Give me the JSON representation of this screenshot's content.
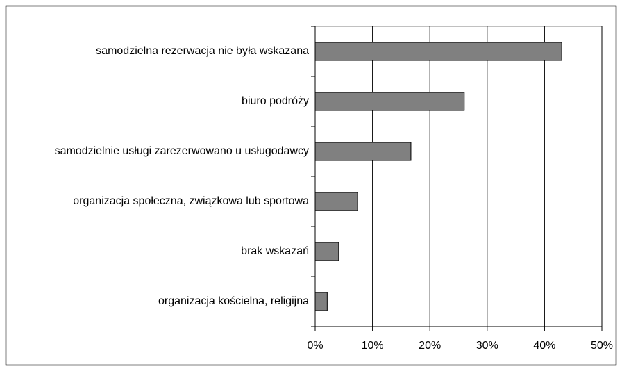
{
  "chart_data": {
    "type": "barh",
    "categories": [
      "samodzielna rezerwacja nie była wskazana",
      "biuro podróży",
      "samodzielnie usługi zarezerwowano u usługodawcy",
      "organizacja społeczna, związkowa lub sportowa",
      "brak wskazań",
      "organizacja kościelna, religijna"
    ],
    "values": [
      43,
      26,
      16.7,
      7.4,
      4.1,
      2.1
    ],
    "color": "#808080",
    "xlim": [
      0,
      50
    ],
    "xticks": [
      {
        "value": 0,
        "label": "0%"
      },
      {
        "value": 10,
        "label": "10%"
      },
      {
        "value": 20,
        "label": "20%"
      },
      {
        "value": 30,
        "label": "30%"
      },
      {
        "value": 40,
        "label": "40%"
      },
      {
        "value": 50,
        "label": "50%"
      }
    ],
    "grid": true
  }
}
